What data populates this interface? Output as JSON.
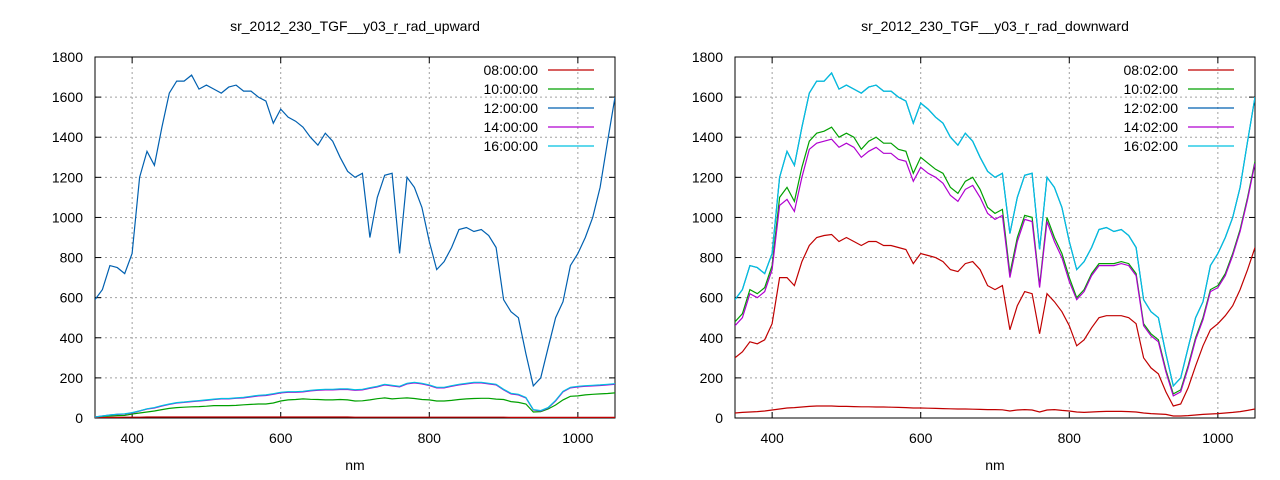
{
  "colors": {
    "08": "#c00000",
    "10": "#00a000",
    "12": "#0060b0",
    "14": "#b000d0",
    "16": "#00c0e0",
    "grid": "#a0a0a0",
    "axis": "#000000"
  },
  "chart_data": [
    {
      "type": "line",
      "title": "sr_2012_230_TGF__y03_r_rad_upward",
      "xlabel": "nm",
      "ylabel": "",
      "xlim": [
        350,
        1050
      ],
      "ylim": [
        0,
        1800
      ],
      "xticks": [
        400,
        600,
        800,
        1000
      ],
      "yticks": [
        0,
        200,
        400,
        600,
        800,
        1000,
        1200,
        1400,
        1600,
        1800
      ],
      "grid": true,
      "legend_position": "top-right",
      "x": [
        350,
        360,
        370,
        380,
        390,
        400,
        410,
        420,
        430,
        440,
        450,
        460,
        470,
        480,
        490,
        500,
        510,
        520,
        530,
        540,
        550,
        560,
        570,
        580,
        590,
        600,
        610,
        620,
        630,
        640,
        650,
        660,
        670,
        680,
        690,
        700,
        710,
        720,
        730,
        740,
        750,
        760,
        770,
        780,
        790,
        800,
        810,
        820,
        830,
        840,
        850,
        860,
        870,
        880,
        890,
        900,
        910,
        920,
        930,
        940,
        950,
        960,
        970,
        980,
        990,
        1000,
        1010,
        1020,
        1030,
        1040,
        1050
      ],
      "series": [
        {
          "name": "08:00:00",
          "color_key": "08",
          "values": [
            3,
            3,
            3,
            3,
            4,
            4,
            4,
            5,
            5,
            5,
            5,
            5,
            5,
            5,
            5,
            5,
            5,
            5,
            5,
            5,
            5,
            5,
            5,
            5,
            5,
            5,
            5,
            5,
            5,
            5,
            5,
            5,
            5,
            5,
            5,
            4,
            4,
            4,
            4,
            4,
            4,
            4,
            4,
            4,
            4,
            4,
            4,
            4,
            4,
            4,
            4,
            4,
            4,
            4,
            4,
            4,
            3,
            3,
            3,
            3,
            3,
            3,
            3,
            3,
            3,
            3,
            3,
            3,
            3,
            3,
            3
          ]
        },
        {
          "name": "10:00:00",
          "color_key": "10",
          "values": [
            5,
            8,
            10,
            12,
            13,
            20,
            25,
            30,
            35,
            42,
            48,
            52,
            54,
            56,
            57,
            59,
            62,
            62,
            62,
            63,
            66,
            68,
            70,
            70,
            75,
            85,
            90,
            92,
            95,
            93,
            92,
            90,
            90,
            92,
            90,
            85,
            86,
            90,
            96,
            100,
            95,
            98,
            100,
            97,
            92,
            90,
            85,
            85,
            88,
            92,
            95,
            97,
            98,
            98,
            94,
            92,
            82,
            78,
            70,
            30,
            32,
            45,
            65,
            90,
            108,
            110,
            115,
            118,
            120,
            122,
            125
          ]
        },
        {
          "name": "12:00:00",
          "color_key": "12",
          "values": [
            590,
            640,
            760,
            750,
            720,
            820,
            1200,
            1330,
            1260,
            1450,
            1620,
            1680,
            1680,
            1710,
            1640,
            1660,
            1640,
            1620,
            1650,
            1660,
            1630,
            1630,
            1600,
            1580,
            1470,
            1540,
            1500,
            1480,
            1450,
            1400,
            1360,
            1420,
            1380,
            1300,
            1230,
            1200,
            1220,
            900,
            1100,
            1210,
            1220,
            820,
            1200,
            1150,
            1050,
            880,
            740,
            780,
            850,
            940,
            950,
            930,
            940,
            910,
            850,
            590,
            530,
            500,
            320,
            160,
            200,
            350,
            500,
            580,
            760,
            820,
            900,
            1000,
            1150,
            1380,
            1600
          ]
        },
        {
          "name": "14:00:00",
          "color_key": "14",
          "values": [
            5,
            10,
            15,
            18,
            20,
            25,
            35,
            45,
            50,
            60,
            68,
            75,
            78,
            82,
            85,
            88,
            92,
            95,
            95,
            98,
            100,
            105,
            110,
            112,
            118,
            125,
            128,
            128,
            130,
            135,
            138,
            140,
            140,
            142,
            142,
            138,
            140,
            148,
            155,
            165,
            160,
            155,
            170,
            175,
            170,
            162,
            150,
            150,
            158,
            165,
            170,
            175,
            175,
            170,
            165,
            140,
            120,
            115,
            100,
            40,
            35,
            50,
            85,
            130,
            150,
            155,
            158,
            160,
            162,
            165,
            168
          ]
        },
        {
          "name": "16:00:00",
          "color_key": "16",
          "values": [
            5,
            10,
            15,
            19,
            21,
            27,
            36,
            46,
            52,
            62,
            70,
            77,
            80,
            84,
            87,
            90,
            94,
            97,
            97,
            100,
            103,
            108,
            113,
            115,
            121,
            128,
            131,
            131,
            133,
            138,
            141,
            143,
            143,
            145,
            145,
            141,
            143,
            151,
            158,
            168,
            163,
            158,
            173,
            178,
            173,
            165,
            153,
            153,
            161,
            168,
            173,
            178,
            178,
            173,
            168,
            143,
            123,
            118,
            102,
            42,
            37,
            52,
            88,
            133,
            153,
            158,
            161,
            163,
            165,
            168,
            171
          ]
        }
      ]
    },
    {
      "type": "line",
      "title": "sr_2012_230_TGF__y03_r_rad_downward",
      "xlabel": "nm",
      "ylabel": "",
      "xlim": [
        350,
        1050
      ],
      "ylim": [
        0,
        1800
      ],
      "xticks": [
        400,
        600,
        800,
        1000
      ],
      "yticks": [
        0,
        200,
        400,
        600,
        800,
        1000,
        1200,
        1400,
        1600,
        1800
      ],
      "grid": true,
      "legend_position": "top-right",
      "x": [
        350,
        360,
        370,
        380,
        390,
        400,
        410,
        420,
        430,
        440,
        450,
        460,
        470,
        480,
        490,
        500,
        510,
        520,
        530,
        540,
        550,
        560,
        570,
        580,
        590,
        600,
        610,
        620,
        630,
        640,
        650,
        660,
        670,
        680,
        690,
        700,
        710,
        720,
        730,
        740,
        750,
        760,
        770,
        780,
        790,
        800,
        810,
        820,
        830,
        840,
        850,
        860,
        870,
        880,
        890,
        900,
        910,
        920,
        930,
        940,
        950,
        960,
        970,
        980,
        990,
        1000,
        1010,
        1020,
        1030,
        1040,
        1050
      ],
      "series": [
        {
          "name": "08:02:00",
          "color_key": "08",
          "values": [
            25,
            28,
            30,
            32,
            35,
            40,
            45,
            50,
            52,
            55,
            58,
            60,
            60,
            60,
            58,
            58,
            57,
            56,
            56,
            55,
            55,
            54,
            53,
            52,
            50,
            50,
            49,
            48,
            47,
            46,
            45,
            45,
            44,
            43,
            42,
            42,
            41,
            35,
            40,
            42,
            40,
            30,
            40,
            42,
            38,
            35,
            30,
            28,
            30,
            32,
            33,
            33,
            33,
            32,
            30,
            25,
            22,
            20,
            18,
            10,
            10,
            12,
            15,
            18,
            20,
            22,
            25,
            28,
            32,
            38,
            45
          ]
        },
        {
          "name": "10:02:00",
          "color_key": "10",
          "values": [
            480,
            520,
            640,
            620,
            650,
            760,
            1100,
            1150,
            1080,
            1250,
            1380,
            1420,
            1430,
            1450,
            1400,
            1420,
            1400,
            1340,
            1380,
            1400,
            1370,
            1370,
            1340,
            1330,
            1220,
            1300,
            1270,
            1240,
            1220,
            1150,
            1120,
            1180,
            1200,
            1140,
            1050,
            1020,
            1040,
            720,
            900,
            1010,
            1000,
            660,
            1000,
            900,
            820,
            700,
            600,
            640,
            720,
            770,
            770,
            770,
            780,
            770,
            720,
            470,
            420,
            390,
            240,
            120,
            140,
            260,
            400,
            500,
            640,
            660,
            720,
            820,
            940,
            1100,
            1280
          ]
        },
        {
          "name": "12:02:00",
          "color_key": "12",
          "values": [
            590,
            640,
            760,
            750,
            720,
            820,
            1200,
            1330,
            1260,
            1450,
            1620,
            1680,
            1680,
            1720,
            1640,
            1660,
            1640,
            1620,
            1650,
            1660,
            1630,
            1630,
            1600,
            1580,
            1470,
            1570,
            1540,
            1500,
            1470,
            1400,
            1360,
            1420,
            1380,
            1300,
            1230,
            1200,
            1220,
            920,
            1100,
            1210,
            1220,
            840,
            1200,
            1150,
            1050,
            880,
            740,
            780,
            850,
            940,
            950,
            930,
            940,
            910,
            850,
            590,
            530,
            500,
            320,
            160,
            200,
            350,
            500,
            580,
            760,
            820,
            900,
            1000,
            1150,
            1380,
            1600
          ]
        },
        {
          "name": "14:02:00",
          "color_key": "14",
          "values": [
            460,
            500,
            620,
            600,
            630,
            740,
            1060,
            1090,
            1030,
            1200,
            1340,
            1370,
            1380,
            1390,
            1350,
            1370,
            1350,
            1300,
            1330,
            1350,
            1320,
            1320,
            1290,
            1280,
            1180,
            1250,
            1220,
            1200,
            1170,
            1110,
            1080,
            1140,
            1160,
            1100,
            1020,
            990,
            1010,
            700,
            880,
            990,
            980,
            650,
            980,
            880,
            800,
            680,
            590,
            630,
            710,
            760,
            760,
            760,
            770,
            760,
            710,
            460,
            410,
            380,
            230,
            110,
            130,
            250,
            390,
            490,
            630,
            650,
            710,
            810,
            930,
            1090,
            1270
          ]
        },
        {
          "name": "16:02:00",
          "color_key": "16",
          "values": [
            590,
            640,
            760,
            750,
            720,
            820,
            1200,
            1330,
            1260,
            1450,
            1620,
            1680,
            1680,
            1720,
            1640,
            1660,
            1640,
            1620,
            1650,
            1660,
            1630,
            1630,
            1600,
            1580,
            1470,
            1570,
            1540,
            1500,
            1470,
            1400,
            1360,
            1420,
            1380,
            1300,
            1230,
            1200,
            1220,
            920,
            1100,
            1210,
            1220,
            840,
            1200,
            1150,
            1050,
            880,
            740,
            780,
            850,
            940,
            950,
            930,
            940,
            910,
            850,
            590,
            530,
            500,
            320,
            160,
            200,
            350,
            500,
            580,
            760,
            820,
            900,
            1000,
            1150,
            1380,
            1600
          ]
        },
        {
          "name": "",
          "color_key": "08",
          "values": [
            300,
            330,
            380,
            370,
            390,
            470,
            700,
            700,
            660,
            780,
            860,
            900,
            910,
            915,
            880,
            900,
            880,
            860,
            880,
            880,
            860,
            860,
            850,
            840,
            770,
            820,
            810,
            800,
            780,
            740,
            730,
            770,
            780,
            740,
            660,
            640,
            660,
            440,
            560,
            630,
            620,
            420,
            620,
            580,
            530,
            460,
            360,
            390,
            450,
            500,
            510,
            510,
            510,
            500,
            470,
            300,
            250,
            220,
            130,
            60,
            70,
            150,
            260,
            360,
            440,
            470,
            510,
            560,
            640,
            740,
            850
          ]
        }
      ]
    }
  ]
}
